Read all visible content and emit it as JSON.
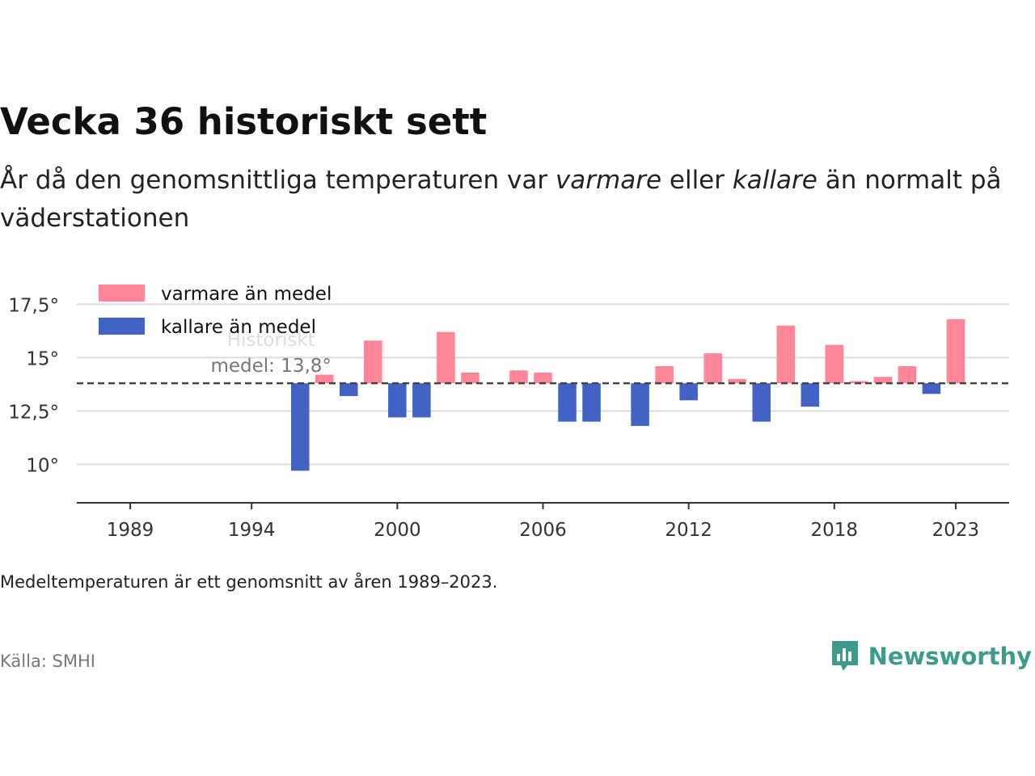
{
  "header": {
    "title": "Vecka 36 historiskt sett",
    "subtitle_part1": "År då den genomsnittliga temperaturen var ",
    "subtitle_warm": "varmare",
    "subtitle_part2": " eller ",
    "subtitle_cold": "kallare",
    "subtitle_part3": " än normalt på väderstationen"
  },
  "footer": {
    "note": "Medeltemperaturen är ett genomsnitt av åren 1989–2023.",
    "source": "Källa: SMHI",
    "brand": "Newsworthy"
  },
  "colors": {
    "warm": "#ff8696",
    "cold": "#4263c4",
    "brand": "#3e9b8c"
  },
  "chart_data": {
    "type": "bar",
    "baseline": 13.8,
    "baseline_label_line1": "Historiskt",
    "baseline_label_line2": "medel: 13,8°",
    "ylim": [
      8.2,
      18.5
    ],
    "xlim": [
      1986.8,
      2025.2
    ],
    "yticks": [
      10,
      12.5,
      15,
      17.5
    ],
    "ytick_labels": [
      "10°",
      "12,5°",
      "15°",
      "17,5°"
    ],
    "xticks": [
      1989,
      1994,
      2000,
      2006,
      2012,
      2018,
      2023
    ],
    "xtick_labels": [
      "1989",
      "1994",
      "2000",
      "2006",
      "2012",
      "2018",
      "2023"
    ],
    "legend": [
      {
        "key": "warm",
        "label": "varmare än medel"
      },
      {
        "key": "cold",
        "label": "kallare än medel"
      }
    ],
    "legend_position": "top-left",
    "grid": true,
    "x": [
      1996,
      1997,
      1998,
      1999,
      2000,
      2001,
      2002,
      2003,
      2005,
      2006,
      2007,
      2008,
      2010,
      2011,
      2012,
      2013,
      2014,
      2015,
      2016,
      2017,
      2018,
      2019,
      2020,
      2021,
      2022,
      2023
    ],
    "values": [
      9.7,
      14.2,
      13.2,
      15.8,
      12.2,
      12.2,
      16.2,
      14.3,
      14.4,
      14.3,
      12.0,
      12.0,
      11.8,
      14.6,
      13.0,
      15.2,
      14.0,
      12.0,
      16.5,
      12.7,
      15.6,
      13.9,
      14.1,
      14.6,
      13.3,
      16.8
    ]
  }
}
